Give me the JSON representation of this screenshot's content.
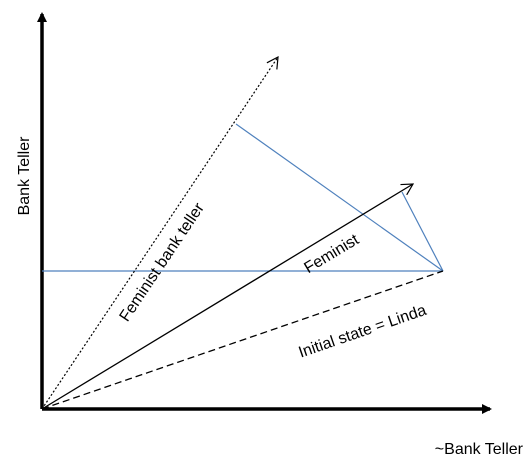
{
  "axes": {
    "y_label": "Bank Teller",
    "x_label": "~Bank Teller"
  },
  "vectors": {
    "feminist_bank_teller": "Feminist bank teller",
    "feminist": "Feminist",
    "initial_state": "Initial state = Linda"
  },
  "colors": {
    "axis": "#000000",
    "vector": "#000000",
    "projection": "#4f81bd"
  }
}
